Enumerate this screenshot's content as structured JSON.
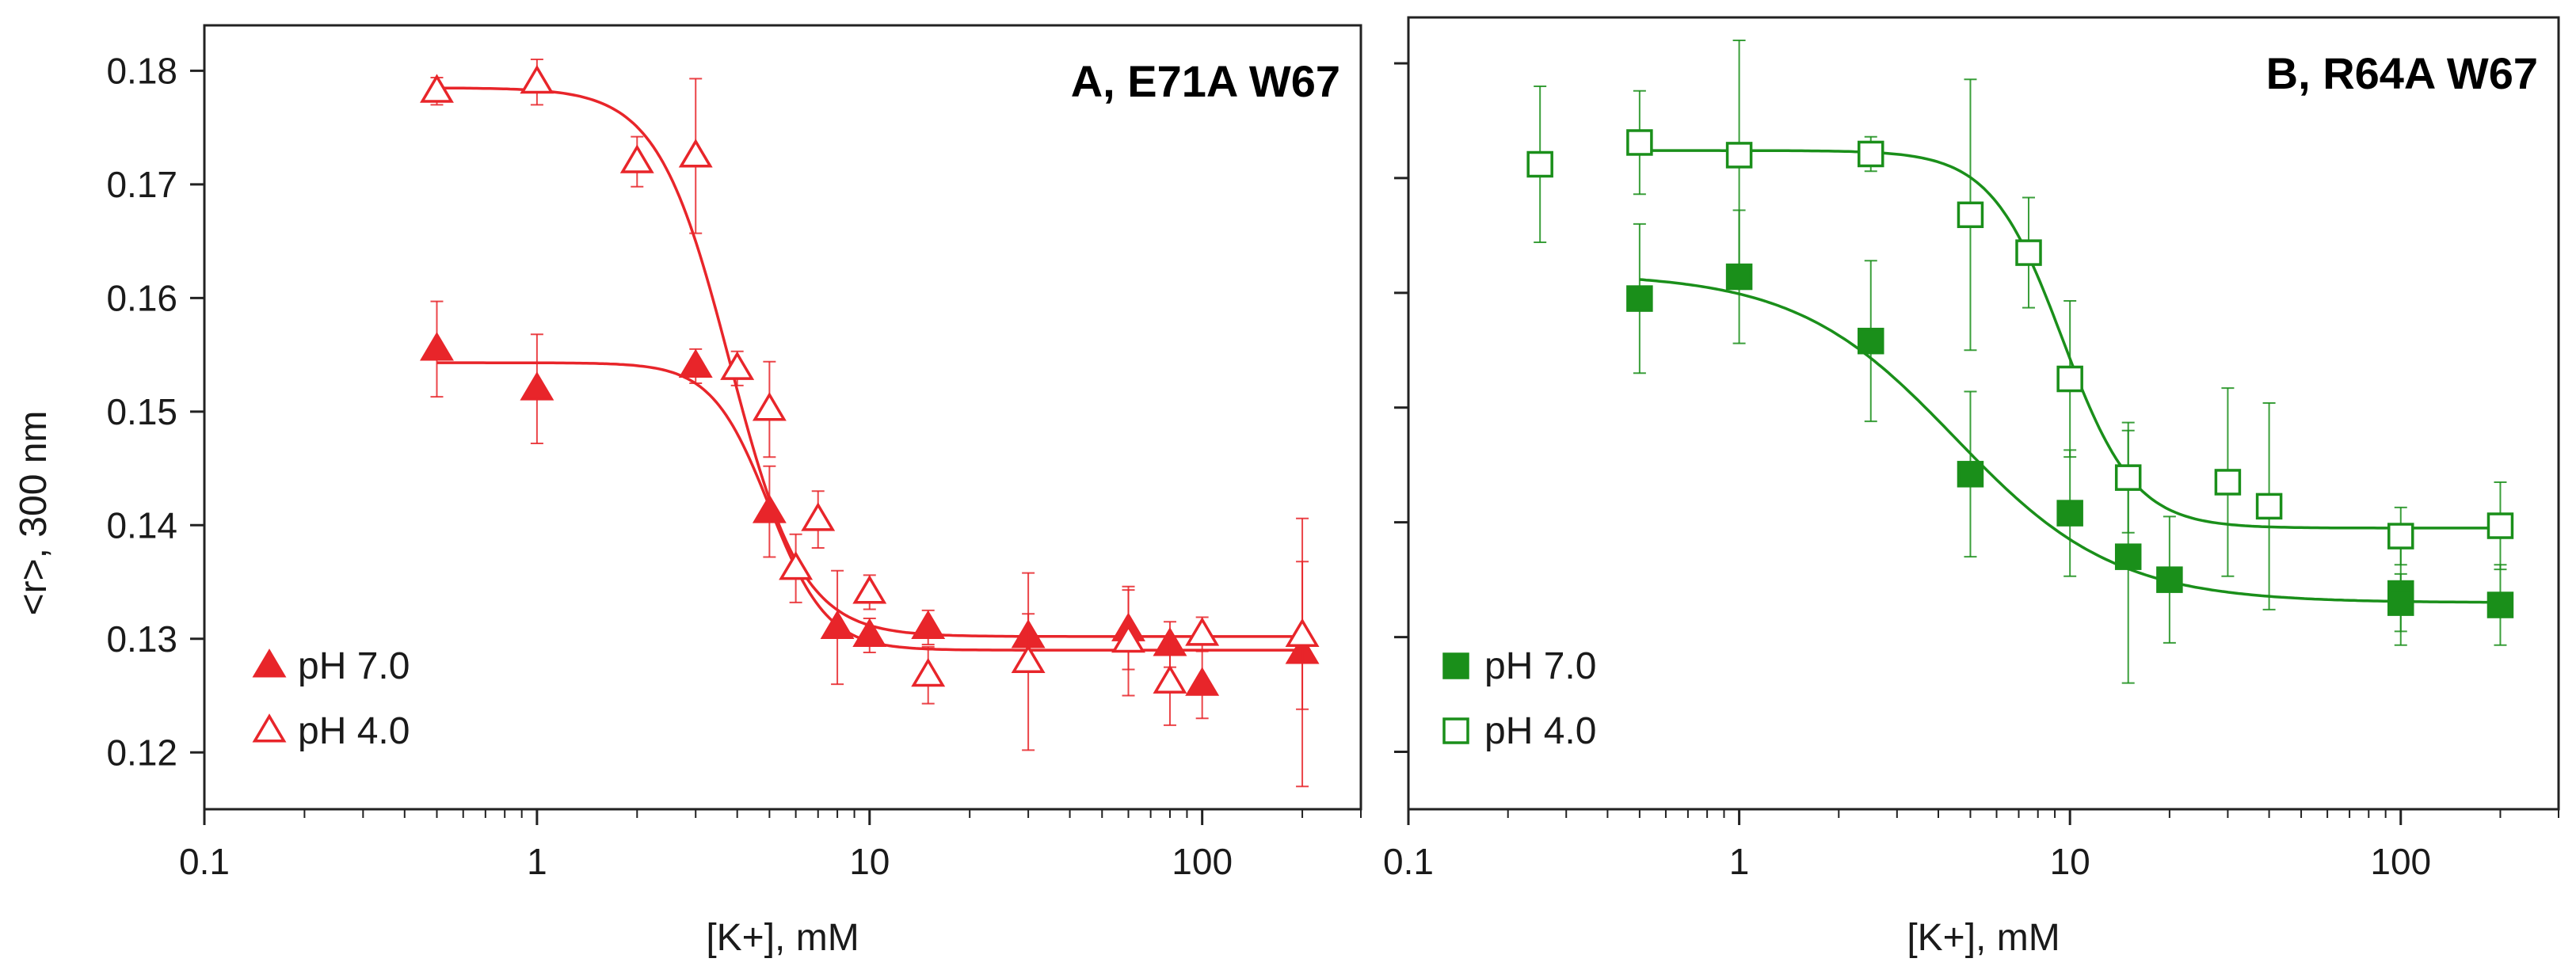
{
  "ylabel": "<r>, 300 nm",
  "chart_data": [
    {
      "type": "scatter",
      "title": "A, E71A W67",
      "xlabel": "[K+], mM",
      "xscale": "log",
      "xlim": [
        0.1,
        300
      ],
      "ylim": [
        0.115,
        0.184
      ],
      "x_ticks": [
        0.1,
        1,
        10,
        100
      ],
      "x_tick_labels": [
        "0.1",
        "1",
        "10",
        "100"
      ],
      "y_ticks": [
        0.12,
        0.13,
        0.14,
        0.15,
        0.16,
        0.17,
        0.18
      ],
      "y_tick_labels": [
        "0.12",
        "0.13",
        "0.14",
        "0.15",
        "0.16",
        "0.17",
        "0.18"
      ],
      "color": "#e8252a",
      "series": [
        {
          "name": "pH 7.0",
          "marker": "triangle-filled",
          "points": [
            {
              "x": 0.5,
              "y": 0.1555,
              "err": 0.0042
            },
            {
              "x": 1,
              "y": 0.152,
              "err": 0.0048
            },
            {
              "x": 3,
              "y": 0.154,
              "err": 0.0015
            },
            {
              "x": 5,
              "y": 0.1412,
              "err": 0.004
            },
            {
              "x": 8,
              "y": 0.131,
              "err": 0.005
            },
            {
              "x": 10,
              "y": 0.1303,
              "err": 0.0015
            },
            {
              "x": 15,
              "y": 0.131,
              "err": 0.0015
            },
            {
              "x": 30,
              "y": 0.1302,
              "err": 0.002
            },
            {
              "x": 60,
              "y": 0.1308,
              "err": 0.0035
            },
            {
              "x": 80,
              "y": 0.1295,
              "err": 0.002
            },
            {
              "x": 100,
              "y": 0.126,
              "err": 0.003
            },
            {
              "x": 200,
              "y": 0.1288,
              "err": 0.0118
            }
          ],
          "fit": {
            "top": 0.1543,
            "bottom": 0.129,
            "midpoint": 5.0,
            "hill": 5
          }
        },
        {
          "name": "pH 4.0",
          "marker": "triangle-open",
          "points": [
            {
              "x": 0.5,
              "y": 0.1782,
              "err": 0.0012
            },
            {
              "x": 1,
              "y": 0.179,
              "err": 0.002
            },
            {
              "x": 2,
              "y": 0.172,
              "err": 0.0022
            },
            {
              "x": 3,
              "y": 0.1725,
              "err": 0.0068
            },
            {
              "x": 4,
              "y": 0.1538,
              "err": 0.0015
            },
            {
              "x": 5,
              "y": 0.1502,
              "err": 0.0042
            },
            {
              "x": 6,
              "y": 0.1362,
              "err": 0.003
            },
            {
              "x": 7,
              "y": 0.1405,
              "err": 0.0025
            },
            {
              "x": 10,
              "y": 0.1341,
              "err": 0.0015
            },
            {
              "x": 15,
              "y": 0.1268,
              "err": 0.0025
            },
            {
              "x": 30,
              "y": 0.128,
              "err": 0.0078
            },
            {
              "x": 60,
              "y": 0.1298,
              "err": 0.0048
            },
            {
              "x": 80,
              "y": 0.1262,
              "err": 0.0038
            },
            {
              "x": 100,
              "y": 0.1304,
              "err": 0.0015
            },
            {
              "x": 200,
              "y": 0.1303,
              "err": 0.0065
            }
          ],
          "fit": {
            "top": 0.1785,
            "bottom": 0.1302,
            "midpoint": 3.8,
            "hill": 4
          }
        }
      ]
    },
    {
      "type": "scatter",
      "title": "B, R64A W67",
      "xlabel": "[K+], mM",
      "xscale": "log",
      "xlim": [
        0.1,
        300
      ],
      "ylim": [
        0.115,
        0.184
      ],
      "x_ticks": [
        0.1,
        1,
        10,
        100
      ],
      "x_tick_labels": [
        "0.1",
        "1",
        "10",
        "100"
      ],
      "y_ticks": [
        0.12,
        0.13,
        0.14,
        0.15,
        0.16,
        0.17,
        0.18
      ],
      "y_tick_labels": [],
      "color": "#1a8f1a",
      "series": [
        {
          "name": "pH 7.0",
          "marker": "square-filled",
          "points": [
            {
              "x": 0.5,
              "y": 0.1595,
              "err": 0.0065
            },
            {
              "x": 1,
              "y": 0.1614,
              "err": 0.0058
            },
            {
              "x": 2.5,
              "y": 0.1558,
              "err": 0.007
            },
            {
              "x": 5,
              "y": 0.1442,
              "err": 0.0072
            },
            {
              "x": 10,
              "y": 0.1408,
              "err": 0.0055
            },
            {
              "x": 15,
              "y": 0.137,
              "err": 0.011
            },
            {
              "x": 20,
              "y": 0.135,
              "err": 0.0055
            },
            {
              "x": 100,
              "y": 0.1338,
              "err": 0.0045
            },
            {
              "x": 100,
              "y": 0.133,
              "err": 0.0025
            },
            {
              "x": 200,
              "y": 0.1328,
              "err": 0.0035
            }
          ],
          "fit": {
            "top": 0.1617,
            "bottom": 0.133,
            "midpoint": 4.5,
            "hill": 1.8
          }
        },
        {
          "name": "pH 4.0",
          "marker": "square-open",
          "points": [
            {
              "x": 0.25,
              "y": 0.1712,
              "err": 0.0068
            },
            {
              "x": 0.5,
              "y": 0.1731,
              "err": 0.0045
            },
            {
              "x": 1,
              "y": 0.172,
              "err": 0.01
            },
            {
              "x": 2.5,
              "y": 0.1721,
              "err": 0.0015
            },
            {
              "x": 5,
              "y": 0.1668,
              "err": 0.0118
            },
            {
              "x": 7.5,
              "y": 0.1635,
              "err": 0.0048
            },
            {
              "x": 10,
              "y": 0.1525,
              "err": 0.0068
            },
            {
              "x": 15,
              "y": 0.1439,
              "err": 0.0048
            },
            {
              "x": 30,
              "y": 0.1435,
              "err": 0.0082
            },
            {
              "x": 40,
              "y": 0.1414,
              "err": 0.009
            },
            {
              "x": 100,
              "y": 0.1388,
              "err": 0.0025
            },
            {
              "x": 200,
              "y": 0.1397,
              "err": 0.0038
            }
          ],
          "fit": {
            "top": 0.1724,
            "bottom": 0.1395,
            "midpoint": 9.5,
            "hill": 4
          }
        }
      ]
    }
  ]
}
